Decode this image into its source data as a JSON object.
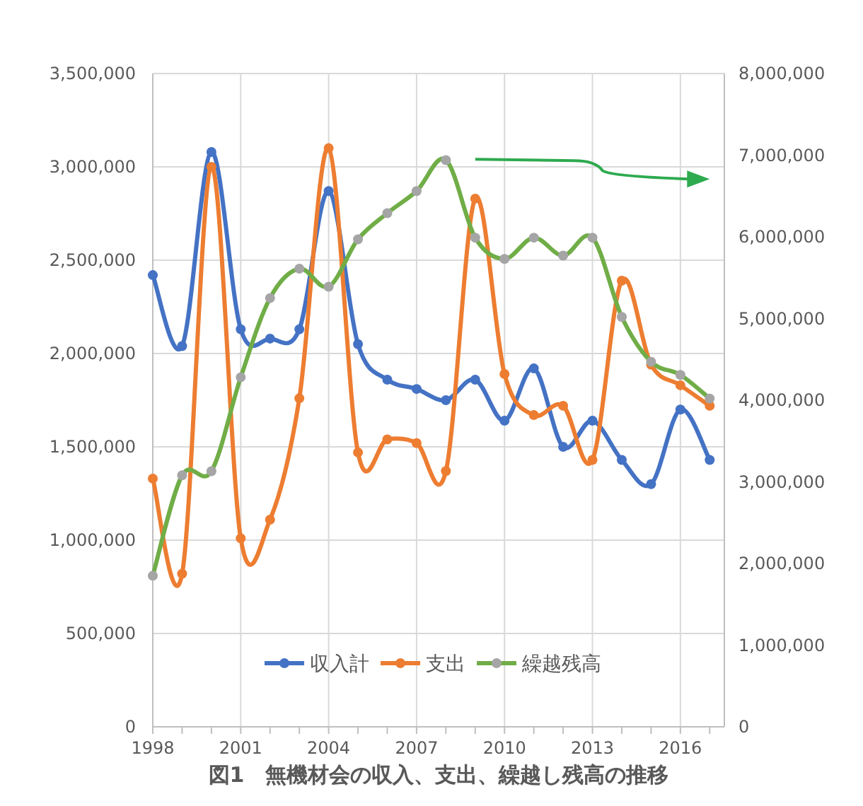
{
  "chart_data": {
    "type": "line",
    "x": [
      1998,
      1999,
      2000,
      2001,
      2002,
      2003,
      2004,
      2005,
      2006,
      2007,
      2008,
      2009,
      2010,
      2011,
      2012,
      2013,
      2014,
      2015,
      2016,
      2017
    ],
    "series": [
      {
        "name": "収入計",
        "color": "#4472c4",
        "values": [
          2420000,
          2040000,
          3080000,
          2130000,
          2080000,
          2130000,
          2870000,
          2050000,
          1860000,
          1810000,
          1750000,
          1860000,
          1640000,
          1920000,
          1500000,
          1640000,
          1430000,
          1300000,
          1700000,
          1430000
        ]
      },
      {
        "name": "支出",
        "color": "#ed7d31",
        "values": [
          1330000,
          820000,
          3000000,
          1010000,
          1110000,
          1760000,
          3100000,
          1470000,
          1540000,
          1520000,
          1370000,
          2830000,
          1890000,
          1670000,
          1720000,
          1430000,
          2390000,
          1940000,
          1830000,
          1720000
        ]
      },
      {
        "name": "繰越残高",
        "color": "#70ad47",
        "colors": [
          "#a5a5a5",
          "#a5a5a5",
          "#a5a5a5",
          "#a5a5a5",
          "#a5a5a5",
          "#a5a5a5",
          "#a5a5a5",
          "#a5a5a5",
          "#a5a5a5",
          "#a5a5a5",
          "#a5a5a5",
          "#a5a5a5",
          "#a5a5a5",
          "#a5a5a5",
          "#a5a5a5",
          "#a5a5a5",
          "#a5a5a5",
          "#a5a5a5",
          "#a5a5a5",
          "#a5a5a5"
        ],
        "axis": "y2",
        "values": [
          1850000,
          3080000,
          3130000,
          4280000,
          5250000,
          5610000,
          5390000,
          5970000,
          6290000,
          6560000,
          6940000,
          5990000,
          5730000,
          5990000,
          5770000,
          5990000,
          5020000,
          4470000,
          4310000,
          4020000
        ]
      }
    ],
    "xlim": [
      1998,
      2017.5
    ],
    "xticks": [
      1998,
      {
        "value": 1999,
        "label": null
      },
      {
        "value": 2000,
        "label": null
      },
      2001,
      {
        "value": 2002,
        "label": null
      },
      {
        "value": 2003,
        "label": null
      },
      2004,
      {
        "value": 2005,
        "label": null
      },
      {
        "value": 2006,
        "label": null
      },
      2007,
      {
        "value": 2008,
        "label": null
      },
      {
        "value": 2009,
        "label": null
      },
      2010,
      {
        "value": 2011,
        "label": null
      },
      {
        "value": 2012,
        "label": null
      },
      2013,
      {
        "value": 2014,
        "label": null
      },
      {
        "value": 2015,
        "label": null
      },
      2016,
      {
        "value": 2017,
        "label": null
      }
    ],
    "ylim": [
      0,
      3500000
    ],
    "yticks": [
      0,
      {
        "value": 500000,
        "label": "500,000"
      },
      {
        "value": 1000000,
        "label": "1,000,000"
      },
      {
        "value": 1500000,
        "label": "1,500,000"
      },
      {
        "value": 2000000,
        "label": "2,000,000"
      },
      {
        "value": 2500000,
        "label": "2,500,000"
      },
      {
        "value": 3000000,
        "label": "3,000,000"
      },
      {
        "value": 3500000,
        "label": "3,500,000"
      }
    ],
    "y2lim": [
      0,
      8000000
    ],
    "y2ticks": [
      0,
      {
        "value": 1000000,
        "label": "1,000,000"
      },
      {
        "value": 2000000,
        "label": "2,000,000"
      },
      {
        "value": 3000000,
        "label": "3,000,000"
      },
      {
        "value": 4000000,
        "label": "4,000,000"
      },
      {
        "value": 5000000,
        "label": "5,000,000"
      },
      {
        "value": 6000000,
        "label": "6,000,000"
      },
      {
        "value": 7000000,
        "label": "7,000,000"
      },
      {
        "value": 8000000,
        "label": "8,000,000"
      }
    ],
    "grid": true,
    "legend": "bottom",
    "marker": "circle",
    "line_style": "solid",
    "annotations": [
      "図1　無機材会の収入、支出、繰越し残高の推移"
    ]
  }
}
